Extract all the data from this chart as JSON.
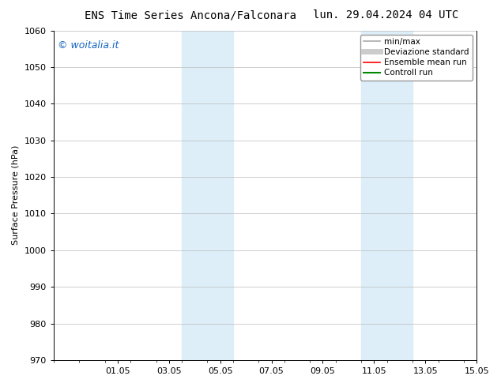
{
  "title_left": "ENS Time Series Ancona/Falconara",
  "title_right": "lun. 29.04.2024 04 UTC",
  "ylabel": "Surface Pressure (hPa)",
  "ylim": [
    970,
    1060
  ],
  "yticks": [
    970,
    980,
    990,
    1000,
    1010,
    1020,
    1030,
    1040,
    1050,
    1060
  ],
  "xlim": [
    0,
    16.5
  ],
  "xtick_labels": [
    "01.05",
    "03.05",
    "05.05",
    "07.05",
    "09.05",
    "11.05",
    "13.05",
    "15.05"
  ],
  "xtick_positions": [
    2.5,
    4.5,
    6.5,
    8.5,
    10.5,
    12.5,
    14.5,
    16.5
  ],
  "shaded_bands": [
    {
      "x_start": 5.0,
      "x_end": 7.0
    },
    {
      "x_start": 12.0,
      "x_end": 14.0
    }
  ],
  "shaded_color": "#ddeef8",
  "watermark_text": "© woitalia.it",
  "watermark_color": "#1565c0",
  "legend_entries": [
    {
      "label": "min/max",
      "color": "#aaaaaa",
      "lw": 1.2
    },
    {
      "label": "Deviazione standard",
      "color": "#cccccc",
      "lw": 5
    },
    {
      "label": "Ensemble mean run",
      "color": "#ff0000",
      "lw": 1.2
    },
    {
      "label": "Controll run",
      "color": "#008800",
      "lw": 1.5
    }
  ],
  "background_color": "#ffffff",
  "grid_color": "#bbbbbb",
  "title_fontsize": 10,
  "axis_fontsize": 8,
  "tick_fontsize": 8,
  "watermark_fontsize": 9,
  "legend_fontsize": 7.5
}
